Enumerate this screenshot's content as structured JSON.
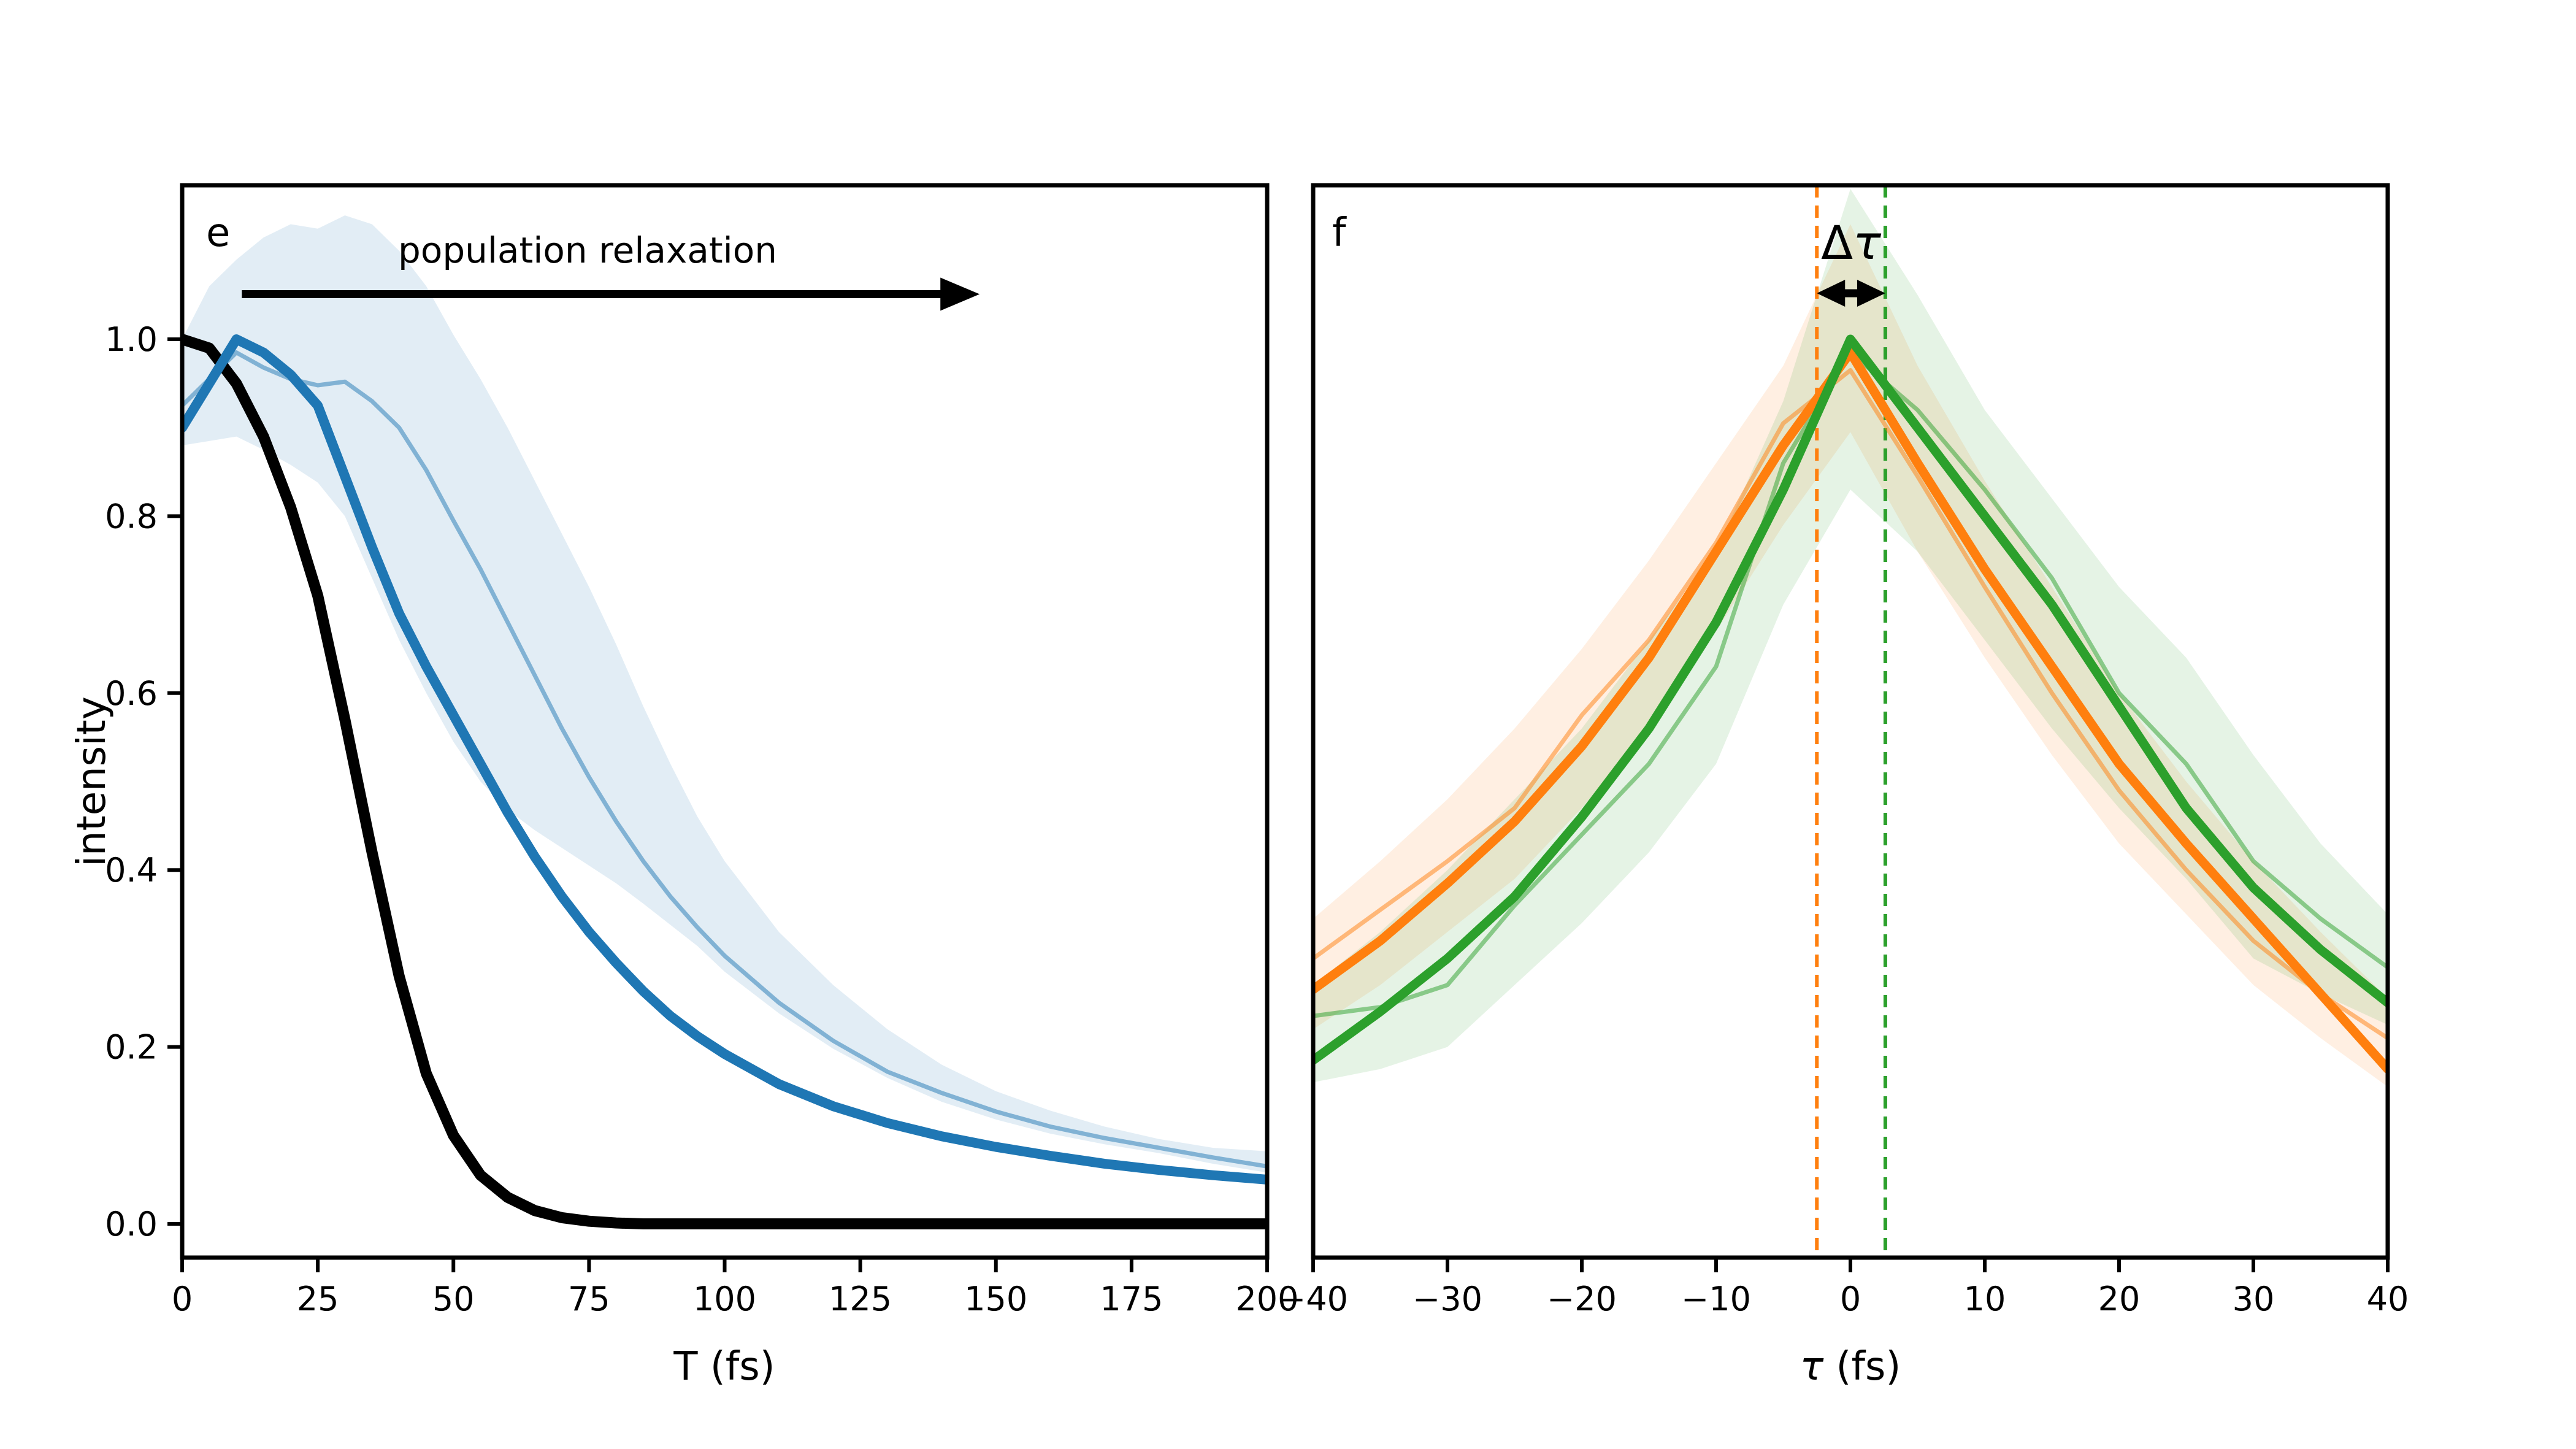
{
  "figure": {
    "background": "#ffffff",
    "accent_blue": "#1f77b4",
    "accent_orange": "#ff7f0e",
    "accent_green": "#2ca02c",
    "axis_color": "#000000"
  },
  "panel_e": {
    "letter": "e",
    "annotation_text": "population relaxation",
    "ylabel": "intensity",
    "xlabel": "T (fs)"
  },
  "panel_f": {
    "letter": "f",
    "xlabel_symbol": "τ",
    "xlabel_unit": " (fs)",
    "delta_symbol": "Δ",
    "tau_symbol": "τ"
  },
  "chart_data": [
    {
      "type": "line",
      "panel": "e",
      "title": "",
      "xlabel": "T (fs)",
      "ylabel": "intensity",
      "xlim": [
        0,
        200
      ],
      "ylim": [
        -0.046,
        1.177
      ],
      "grid": false,
      "legend": "none",
      "xticks": [
        0,
        25,
        50,
        75,
        100,
        125,
        150,
        175,
        200
      ],
      "xtick_labels": [
        "0",
        "25",
        "50",
        "75",
        "100",
        "125",
        "150",
        "175",
        "200"
      ],
      "yticks": [
        0.0,
        0.2,
        0.4,
        0.6,
        0.8,
        1.0
      ],
      "ytick_labels": [
        "0.0",
        "0.2",
        "0.4",
        "0.6",
        "0.8",
        "1.0"
      ],
      "x": [
        0,
        5,
        10,
        15,
        20,
        25,
        30,
        35,
        40,
        45,
        50,
        55,
        60,
        65,
        70,
        75,
        80,
        85,
        90,
        95,
        100,
        110,
        120,
        130,
        140,
        150,
        160,
        170,
        180,
        190,
        200
      ],
      "bands": [
        {
          "name": "blue-confidence-band",
          "color": "#1f77b4",
          "opacity": 0.13,
          "upper": [
            1.0,
            1.06,
            1.09,
            1.115,
            1.13,
            1.125,
            1.14,
            1.13,
            1.1,
            1.06,
            1.005,
            0.955,
            0.9,
            0.84,
            0.78,
            0.72,
            0.655,
            0.585,
            0.52,
            0.46,
            0.41,
            0.33,
            0.27,
            0.22,
            0.18,
            0.15,
            0.128,
            0.11,
            0.096,
            0.086,
            0.082
          ],
          "lower": [
            0.88,
            0.885,
            0.89,
            0.875,
            0.858,
            0.838,
            0.8,
            0.73,
            0.66,
            0.6,
            0.545,
            0.5,
            0.468,
            0.445,
            0.425,
            0.405,
            0.385,
            0.362,
            0.338,
            0.314,
            0.285,
            0.238,
            0.198,
            0.165,
            0.138,
            0.118,
            0.102,
            0.09,
            0.08,
            0.068,
            0.058
          ]
        }
      ],
      "series": [
        {
          "name": "thin-blue-mean-trace",
          "color": "#1f77b4",
          "opacity": 0.5,
          "width": 7,
          "values": [
            0.925,
            0.955,
            0.985,
            0.968,
            0.955,
            0.948,
            0.952,
            0.93,
            0.9,
            0.852,
            0.795,
            0.74,
            0.68,
            0.62,
            0.56,
            0.505,
            0.455,
            0.41,
            0.37,
            0.335,
            0.303,
            0.25,
            0.207,
            0.172,
            0.148,
            0.127,
            0.11,
            0.097,
            0.086,
            0.075,
            0.065
          ]
        },
        {
          "name": "black-reference-decay",
          "color": "#000000",
          "opacity": 1,
          "width": 18,
          "values": [
            1.0,
            0.99,
            0.95,
            0.89,
            0.81,
            0.71,
            0.57,
            0.42,
            0.28,
            0.17,
            0.1,
            0.055,
            0.03,
            0.015,
            0.007,
            0.003,
            0.001,
            0,
            0,
            0,
            0,
            0,
            0,
            0,
            0,
            0,
            0,
            0,
            0,
            0,
            0
          ]
        },
        {
          "name": "thick-blue-signal-trace",
          "color": "#1f77b4",
          "opacity": 1,
          "width": 16,
          "values": [
            0.9,
            0.95,
            1.0,
            0.985,
            0.96,
            0.925,
            0.845,
            0.765,
            0.69,
            0.63,
            0.575,
            0.52,
            0.465,
            0.415,
            0.37,
            0.33,
            0.295,
            0.263,
            0.235,
            0.212,
            0.192,
            0.158,
            0.133,
            0.114,
            0.099,
            0.087,
            0.077,
            0.068,
            0.061,
            0.055,
            0.05
          ]
        }
      ],
      "annotation": {
        "text": "population relaxation",
        "arrow": {
          "x1": 11,
          "x2": 147,
          "y": 1.051,
          "heads": "right"
        }
      }
    },
    {
      "type": "line",
      "panel": "f",
      "title": "",
      "xlabel": "τ (fs)",
      "ylabel": "",
      "xlim": [
        -40,
        40
      ],
      "ylim": [
        -0.046,
        1.177
      ],
      "grid": false,
      "legend": "none",
      "xticks": [
        -40,
        -30,
        -20,
        -10,
        0,
        10,
        20,
        30,
        40
      ],
      "xtick_labels": [
        "−40",
        "−30",
        "−20",
        "−10",
        "0",
        "10",
        "20",
        "30",
        "40"
      ],
      "yticks": [],
      "x": [
        -40,
        -35,
        -30,
        -25,
        -20,
        -15,
        -10,
        -5,
        0,
        5,
        10,
        15,
        20,
        25,
        30,
        35,
        40
      ],
      "bands": [
        {
          "name": "orange-confidence-band",
          "color": "#ff7f0e",
          "opacity": 0.12,
          "upper": [
            0.345,
            0.41,
            0.48,
            0.56,
            0.65,
            0.75,
            0.86,
            0.97,
            1.13,
            0.97,
            0.84,
            0.72,
            0.6,
            0.5,
            0.41,
            0.33,
            0.255
          ],
          "lower": [
            0.22,
            0.27,
            0.33,
            0.39,
            0.47,
            0.56,
            0.67,
            0.79,
            0.895,
            0.76,
            0.64,
            0.53,
            0.43,
            0.35,
            0.27,
            0.21,
            0.155
          ]
        },
        {
          "name": "green-confidence-band",
          "color": "#2ca02c",
          "opacity": 0.12,
          "upper": [
            0.27,
            0.33,
            0.4,
            0.48,
            0.56,
            0.66,
            0.76,
            0.93,
            1.17,
            1.05,
            0.92,
            0.82,
            0.72,
            0.64,
            0.53,
            0.43,
            0.35
          ],
          "lower": [
            0.16,
            0.175,
            0.2,
            0.27,
            0.34,
            0.42,
            0.52,
            0.7,
            0.83,
            0.76,
            0.66,
            0.56,
            0.47,
            0.39,
            0.3,
            0.26,
            0.225
          ]
        }
      ],
      "vlines": [
        {
          "name": "orange-peak-marker",
          "x": -2.5,
          "color": "#ff7f0e"
        },
        {
          "name": "green-peak-marker",
          "x": 2.6,
          "color": "#2ca02c"
        }
      ],
      "series": [
        {
          "name": "thin-orange-trace",
          "color": "#ff7f0e",
          "opacity": 0.5,
          "width": 7,
          "values": [
            0.3,
            0.355,
            0.41,
            0.47,
            0.575,
            0.66,
            0.77,
            0.905,
            0.965,
            0.845,
            0.72,
            0.6,
            0.49,
            0.4,
            0.32,
            0.26,
            0.21
          ]
        },
        {
          "name": "thin-green-trace",
          "color": "#2ca02c",
          "opacity": 0.5,
          "width": 7,
          "values": [
            0.235,
            0.245,
            0.27,
            0.36,
            0.44,
            0.52,
            0.63,
            0.86,
            0.985,
            0.92,
            0.83,
            0.73,
            0.6,
            0.52,
            0.41,
            0.345,
            0.29
          ]
        },
        {
          "name": "thick-orange-crosscorrelation",
          "color": "#ff7f0e",
          "opacity": 1,
          "width": 15,
          "values": [
            0.265,
            0.32,
            0.385,
            0.455,
            0.54,
            0.64,
            0.76,
            0.88,
            0.985,
            0.86,
            0.74,
            0.63,
            0.52,
            0.43,
            0.345,
            0.26,
            0.175
          ]
        },
        {
          "name": "thick-green-crosscorrelation",
          "color": "#2ca02c",
          "opacity": 1,
          "width": 15,
          "values": [
            0.185,
            0.24,
            0.3,
            0.37,
            0.46,
            0.56,
            0.68,
            0.83,
            1.0,
            0.9,
            0.8,
            0.7,
            0.585,
            0.47,
            0.38,
            0.31,
            0.25
          ]
        }
      ],
      "annotation": {
        "text": "Δτ",
        "arrow": {
          "x1": -2.5,
          "x2": 2.6,
          "y": 1.052,
          "heads": "both"
        }
      }
    }
  ]
}
